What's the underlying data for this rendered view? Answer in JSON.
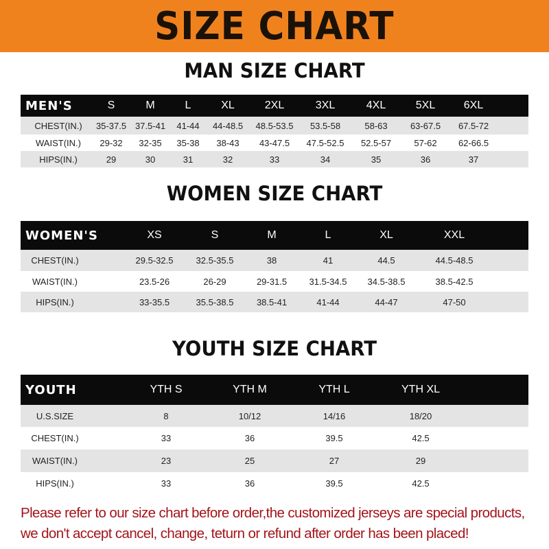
{
  "banner_title": "SIZE CHART",
  "men": {
    "title": "MAN SIZE CHART",
    "corner": "MEN'S",
    "sizes": [
      "S",
      "M",
      "L",
      "XL",
      "2XL",
      "3XL",
      "4XL",
      "5XL",
      "6XL"
    ],
    "rows": [
      {
        "label": "CHEST(IN.)",
        "values": [
          "35-37.5",
          "37.5-41",
          "41-44",
          "44-48.5",
          "48.5-53.5",
          "53.5-58",
          "58-63",
          "63-67.5",
          "67.5-72"
        ]
      },
      {
        "label": "WAIST(IN.)",
        "values": [
          "29-32",
          "32-35",
          "35-38",
          "38-43",
          "43-47.5",
          "47.5-52.5",
          "52.5-57",
          "57-62",
          "62-66.5"
        ]
      },
      {
        "label": "HIPS(IN.)",
        "values": [
          "29",
          "30",
          "31",
          "32",
          "33",
          "34",
          "35",
          "36",
          "37"
        ]
      }
    ]
  },
  "women": {
    "title": "WOMEN SIZE CHART",
    "corner": "WOMEN'S",
    "sizes": [
      "XS",
      "S",
      "M",
      "L",
      "XL",
      "XXL"
    ],
    "rows": [
      {
        "label": "CHEST(IN.)",
        "values": [
          "29.5-32.5",
          "32.5-35.5",
          "38",
          "41",
          "44.5",
          "44.5-48.5"
        ]
      },
      {
        "label": "WAIST(IN.)",
        "values": [
          "23.5-26",
          "26-29",
          "29-31.5",
          "31.5-34.5",
          "34.5-38.5",
          "38.5-42.5"
        ]
      },
      {
        "label": "HIPS(IN.)",
        "values": [
          "33-35.5",
          "35.5-38.5",
          "38.5-41",
          "41-44",
          "44-47",
          "47-50"
        ]
      }
    ]
  },
  "youth": {
    "title": "YOUTH SIZE CHART",
    "corner": "YOUTH",
    "sizes": [
      "YTH S",
      "YTH M",
      "YTH L",
      "YTH XL"
    ],
    "rows": [
      {
        "label": "U.S.SIZE",
        "values": [
          "8",
          "10/12",
          "14/16",
          "18/20"
        ]
      },
      {
        "label": "CHEST(IN.)",
        "values": [
          "33",
          "36",
          "39.5",
          "42.5"
        ]
      },
      {
        "label": "WAIST(IN.)",
        "values": [
          "23",
          "25",
          "27",
          "29"
        ]
      },
      {
        "label": "HIPS(IN.)",
        "values": [
          "33",
          "36",
          "39.5",
          "42.5"
        ]
      }
    ]
  },
  "notice": {
    "line1": "Please refer to our size chart before order,the customized jerseys are special products,",
    "line2": "we don't accept cancel, change, teturn or refund after order has been placed!"
  },
  "colors": {
    "banner": "#f0821e",
    "header_row": "#0b0b0b",
    "stripe": "#e4e4e4",
    "notice": "#a3141a"
  }
}
